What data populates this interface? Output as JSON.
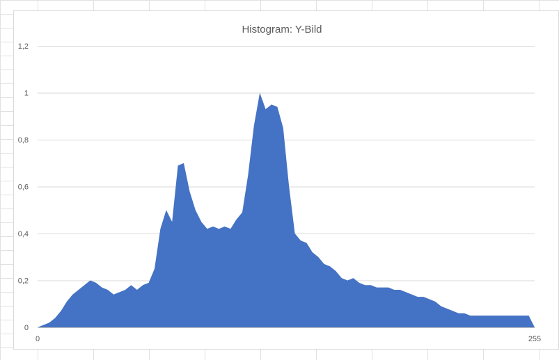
{
  "chart_data": {
    "type": "area",
    "title": "Histogram: Y-Bild",
    "xlabel": "",
    "ylabel": "",
    "xlim": [
      0,
      255
    ],
    "ylim": [
      0,
      1.2
    ],
    "grid": true,
    "legend": "none",
    "x_tick_labels": [
      "0",
      "255"
    ],
    "y_tick_labels": [
      "0",
      "0,2",
      "0,4",
      "0,6",
      "0,8",
      "1",
      "1,2"
    ],
    "y_tick_values": [
      0,
      0.2,
      0.4,
      0.6,
      0.8,
      1.0,
      1.2
    ],
    "fill_color": "#4472C4",
    "gridline_color": "#d9d9d9",
    "text_color": "#595959",
    "x": [
      0,
      3,
      6,
      9,
      12,
      15,
      18,
      21,
      24,
      27,
      30,
      33,
      36,
      39,
      42,
      45,
      48,
      51,
      54,
      57,
      60,
      63,
      66,
      69,
      72,
      75,
      78,
      81,
      84,
      87,
      90,
      93,
      96,
      99,
      102,
      105,
      108,
      111,
      114,
      117,
      120,
      123,
      126,
      129,
      132,
      135,
      138,
      141,
      144,
      147,
      150,
      153,
      156,
      159,
      162,
      165,
      168,
      171,
      174,
      177,
      180,
      183,
      186,
      189,
      192,
      195,
      198,
      201,
      204,
      207,
      210,
      213,
      216,
      219,
      222,
      225,
      228,
      231,
      234,
      237,
      240,
      243,
      246,
      249,
      252,
      255
    ],
    "values": [
      0.0,
      0.01,
      0.02,
      0.04,
      0.07,
      0.11,
      0.14,
      0.16,
      0.18,
      0.2,
      0.19,
      0.17,
      0.16,
      0.14,
      0.15,
      0.16,
      0.18,
      0.16,
      0.18,
      0.19,
      0.25,
      0.42,
      0.5,
      0.45,
      0.69,
      0.7,
      0.58,
      0.5,
      0.45,
      0.42,
      0.43,
      0.42,
      0.43,
      0.42,
      0.46,
      0.49,
      0.65,
      0.86,
      1.0,
      0.93,
      0.95,
      0.94,
      0.85,
      0.6,
      0.4,
      0.37,
      0.36,
      0.32,
      0.3,
      0.27,
      0.26,
      0.24,
      0.21,
      0.2,
      0.21,
      0.19,
      0.18,
      0.18,
      0.17,
      0.17,
      0.17,
      0.16,
      0.16,
      0.15,
      0.14,
      0.13,
      0.13,
      0.12,
      0.11,
      0.09,
      0.08,
      0.07,
      0.06,
      0.06,
      0.05,
      0.05,
      0.05,
      0.05,
      0.05,
      0.05,
      0.05,
      0.05,
      0.05,
      0.05,
      0.05,
      0.0
    ]
  }
}
